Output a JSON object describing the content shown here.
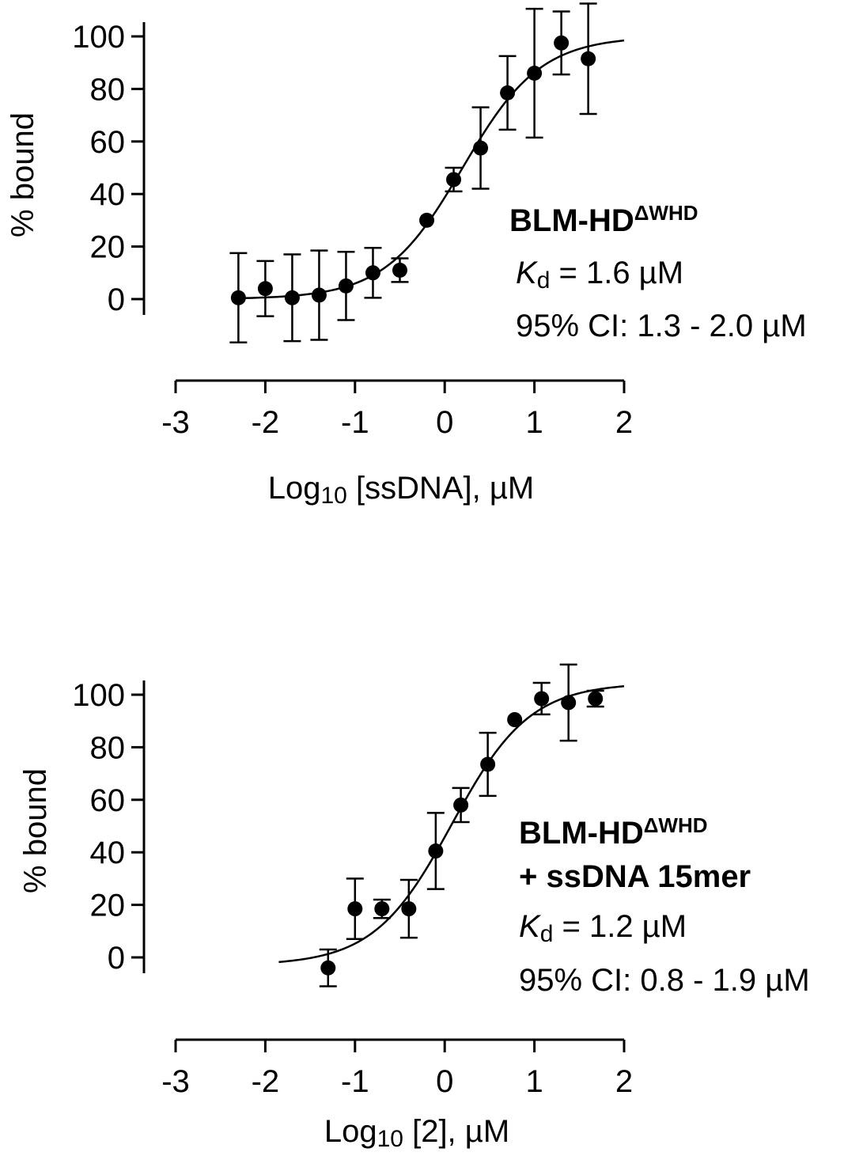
{
  "chart_data": [
    {
      "type": "scatter",
      "xlim": [
        -3,
        2
      ],
      "ylim": [
        0,
        100
      ],
      "x_ticks": [
        "-3",
        "-2",
        "-1",
        "0",
        "1",
        "2"
      ],
      "y_ticks": [
        "0",
        "20",
        "40",
        "60",
        "80",
        "100"
      ],
      "xlabel": {
        "main": "Log",
        "sub": "10",
        "rest": " [ssDNA], µM"
      },
      "ylabel": "%  bound",
      "series": [
        {
          "points": [
            {
              "x": -2.3,
              "y": 0.5,
              "err": 17
            },
            {
              "x": -2.0,
              "y": 4,
              "err": 10.5
            },
            {
              "x": -1.7,
              "y": 0.5,
              "err": 16.5
            },
            {
              "x": -1.4,
              "y": 1.5,
              "err": 17
            },
            {
              "x": -1.1,
              "y": 5,
              "err": 13
            },
            {
              "x": -0.8,
              "y": 10,
              "err": 9.5
            },
            {
              "x": -0.5,
              "y": 11,
              "err": 4.5
            },
            {
              "x": -0.2,
              "y": 30,
              "err": 0
            },
            {
              "x": 0.1,
              "y": 45.5,
              "err": 4.5
            },
            {
              "x": 0.4,
              "y": 57.5,
              "err": 15.5
            },
            {
              "x": 0.7,
              "y": 78.5,
              "err": 14
            },
            {
              "x": 1.0,
              "y": 86,
              "err": 24.5
            },
            {
              "x": 1.3,
              "y": 97.5,
              "err": 12
            },
            {
              "x": 1.6,
              "y": 91.5,
              "err": 21
            }
          ],
          "fit": {
            "bottom": 0,
            "top": 100,
            "logKd": 0.2,
            "hill": 1,
            "x_range": [
              -2.3,
              2.0
            ]
          }
        }
      ],
      "annotation": {
        "title": "BLM-HD",
        "title_sup": "ΔWHD",
        "kd_symbol": "K",
        "kd_sub": "d",
        "kd_value": " = 1.6 µM",
        "ci": "95% CI: 1.3 - 2.0 µM"
      }
    },
    {
      "type": "scatter",
      "xlim": [
        -3,
        2
      ],
      "ylim": [
        0,
        100
      ],
      "x_ticks": [
        "-3",
        "-2",
        "-1",
        "0",
        "1",
        "2"
      ],
      "y_ticks": [
        "0",
        "20",
        "40",
        "60",
        "80",
        "100"
      ],
      "xlabel": {
        "main": "Log",
        "sub": "10",
        "rest": " [2], µM"
      },
      "ylabel": "%  bound",
      "series": [
        {
          "points": [
            {
              "x": -1.3,
              "y": -4,
              "err": 7
            },
            {
              "x": -1.0,
              "y": 18.5,
              "err": 11.5
            },
            {
              "x": -0.7,
              "y": 18.5,
              "err": 3.5
            },
            {
              "x": -0.4,
              "y": 18.5,
              "err": 11
            },
            {
              "x": -0.1,
              "y": 40.5,
              "err": 14.5
            },
            {
              "x": 0.18,
              "y": 58,
              "err": 6.5
            },
            {
              "x": 0.48,
              "y": 73.5,
              "err": 12
            },
            {
              "x": 0.78,
              "y": 90.5,
              "err": 0
            },
            {
              "x": 1.08,
              "y": 98.5,
              "err": 6
            },
            {
              "x": 1.38,
              "y": 97,
              "err": 14.5
            },
            {
              "x": 1.68,
              "y": 98.5,
              "err": 3
            }
          ],
          "fit": {
            "bottom": -3,
            "top": 104.5,
            "logKd": 0.08,
            "hill": 1,
            "x_range": [
              -1.85,
              2.0
            ]
          }
        }
      ],
      "annotation": {
        "title": "BLM-HD",
        "title_sup": "ΔWHD",
        "title_line2": "+ ssDNA 15mer",
        "kd_symbol": "K",
        "kd_sub": "d",
        "kd_value": " = 1.2 µM",
        "ci": "95% CI: 0.8 - 1.9 µM"
      }
    }
  ]
}
